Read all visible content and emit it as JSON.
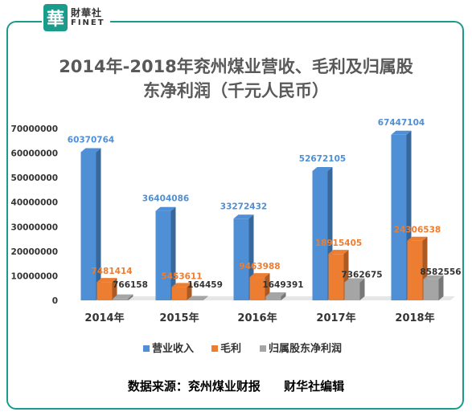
{
  "brand": {
    "logo_char": "華",
    "cn": "財華社",
    "en": "FINET"
  },
  "title": {
    "line1": "2014年-2018年兖州煤业营收、毛利及归属股",
    "line2": "东净利润（千元人民币）"
  },
  "source": {
    "left": "数据来源：兖州煤业财报",
    "right": "财华社编辑"
  },
  "colors": {
    "revenue": "#4e8fd6",
    "gross": "#ed7d31",
    "net": "#a5a5a5",
    "frame": "#1a9c8c"
  },
  "chart_data": {
    "type": "bar",
    "title": "2014年-2018年兖州煤业营收、毛利及归属股东净利润（千元人民币）",
    "categories": [
      "2014年",
      "2015年",
      "2016年",
      "2017年",
      "2018年"
    ],
    "series": [
      {
        "name": "营业收入",
        "values": [
          60370764,
          36404086,
          33272432,
          52672105,
          67447104
        ]
      },
      {
        "name": "毛利",
        "values": [
          7481414,
          5453611,
          9463988,
          18915405,
          24306538
        ]
      },
      {
        "name": "归属股东净利润",
        "values": [
          766158,
          164459,
          1649391,
          7362675,
          8582556
        ]
      }
    ],
    "yticks": [
      "0",
      "10000000",
      "20000000",
      "30000000",
      "40000000",
      "50000000",
      "60000000",
      "70000000"
    ],
    "ylim": [
      0,
      70000000
    ],
    "legend": "bottom",
    "grid": false
  }
}
